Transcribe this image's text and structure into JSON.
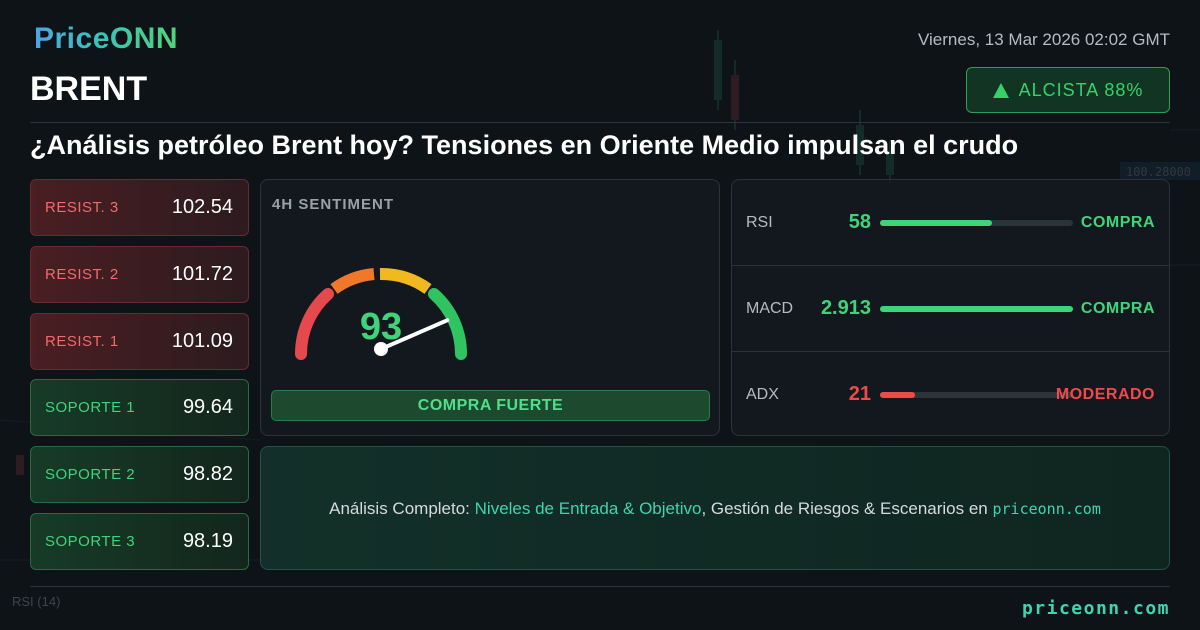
{
  "header": {
    "logo": "PriceONN",
    "symbol": "BRENT",
    "datetime": "Viernes, 13 Mar 2026 02:02 GMT",
    "trend_label": "ALCISTA 88%",
    "trend_color": "#35d26b",
    "headline": "¿Análisis petróleo Brent hoy? Tensiones en Oriente Medio impulsan el crudo"
  },
  "levels": [
    {
      "type": "resistance",
      "label": "RESIST. 3",
      "value": "102.54"
    },
    {
      "type": "resistance",
      "label": "RESIST. 2",
      "value": "101.72"
    },
    {
      "type": "resistance",
      "label": "RESIST. 1",
      "value": "101.09"
    },
    {
      "type": "support",
      "label": "SOPORTE 1",
      "value": "99.64"
    },
    {
      "type": "support",
      "label": "SOPORTE 2",
      "value": "98.82"
    },
    {
      "type": "support",
      "label": "SOPORTE 3",
      "value": "98.19"
    }
  ],
  "sentiment": {
    "title": "4H SENTIMENT",
    "value": "93",
    "fraction": 0.93,
    "label": "COMPRA FUERTE"
  },
  "indicators": [
    {
      "name": "RSI",
      "value": "58",
      "fraction": 0.58,
      "signal": "COMPRA",
      "color": "#3fd47a"
    },
    {
      "name": "MACD",
      "value": "2.913",
      "fraction": 1.0,
      "signal": "COMPRA",
      "color": "#3fd47a"
    },
    {
      "name": "ADX",
      "value": "21",
      "fraction": 0.18,
      "signal": "MODERADO",
      "color": "#ef4a4a"
    }
  ],
  "cta": {
    "prefix": "Análisis Completo: ",
    "highlight": "Niveles de Entrada & Objetivo",
    "middle": ", Gestión de Riesgos & Escenarios en ",
    "site": "priceonn.com"
  },
  "footer": {
    "site": "priceonn.com",
    "rsi_label": "RSI (14)"
  },
  "background": {
    "price_tag": "100.28000"
  }
}
